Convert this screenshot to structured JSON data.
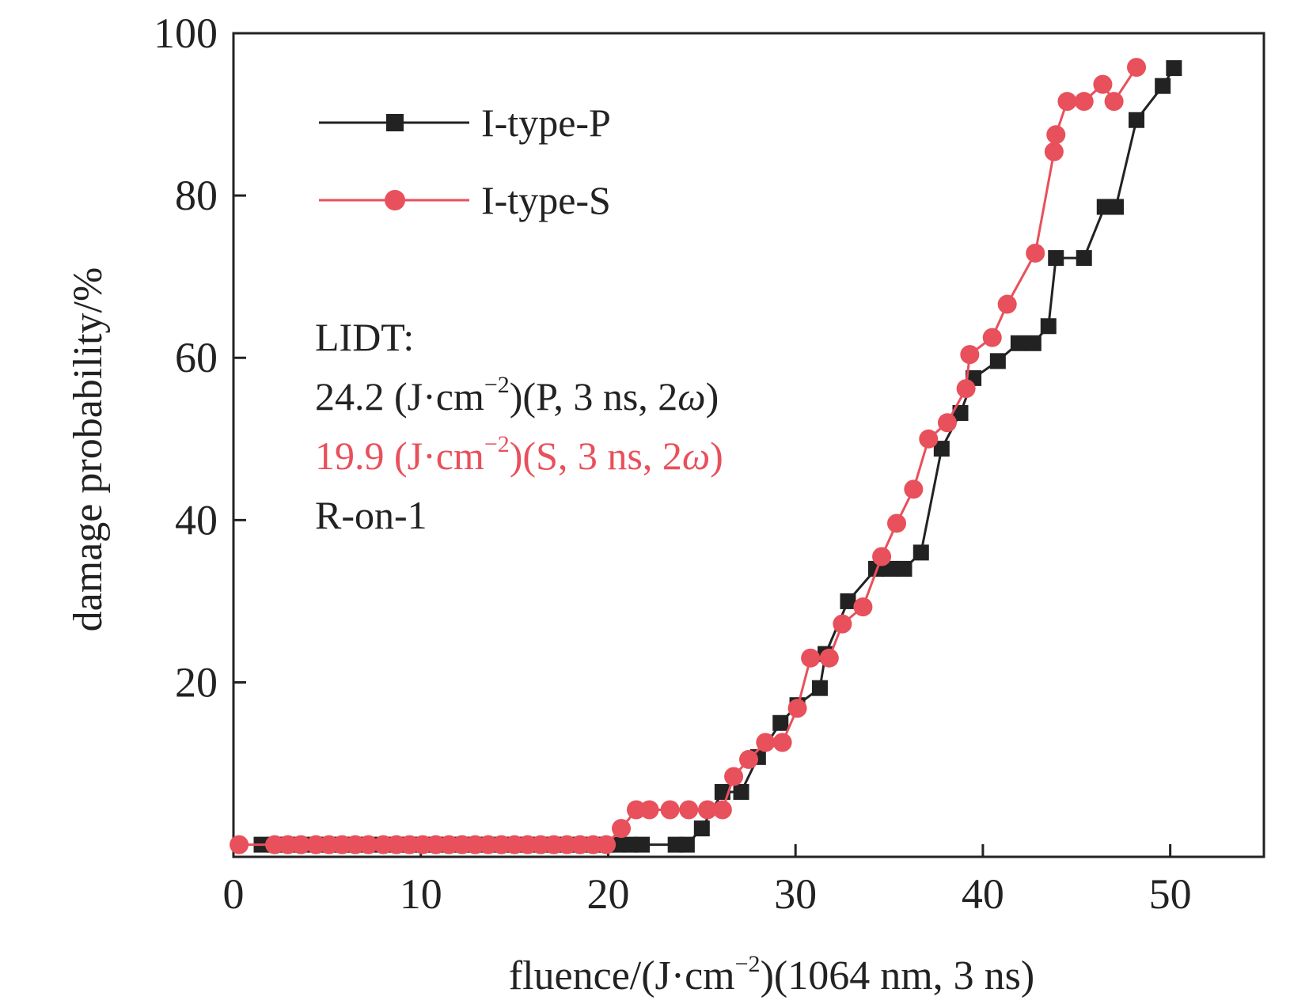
{
  "chart_data": {
    "type": "line",
    "xlabel": "fluence/(J·cm",
    "xlabel_sup": "−2",
    "xlabel_tail": ")(1064 nm, 3 ns)",
    "ylabel": "damage probability/%",
    "xlim": [
      0,
      55
    ],
    "ylim": [
      -1.5,
      100
    ],
    "x_ticks": [
      "0",
      "10",
      "20",
      "30",
      "40",
      "50"
    ],
    "x_tick_values": [
      0,
      10,
      20,
      30,
      40,
      50
    ],
    "y_ticks": [
      "20",
      "40",
      "60",
      "80",
      "100"
    ],
    "y_tick_values": [
      20,
      40,
      60,
      80,
      100
    ],
    "grid": false,
    "legend_position": "top-left",
    "series": [
      {
        "name": "I-type-P",
        "color": "#222222",
        "marker": "square",
        "x": [
          1.5,
          2.2,
          2.9,
          3.6,
          4.4,
          5.1,
          5.8,
          6.5,
          7.2,
          8.0,
          8.7,
          9.4,
          10.1,
          10.8,
          11.5,
          12.2,
          12.9,
          13.6,
          14.3,
          15.0,
          15.7,
          16.4,
          17.1,
          17.8,
          18.5,
          19.2,
          19.9,
          20.5,
          21.2,
          21.8,
          23.6,
          24.2,
          25.0,
          26.1,
          27.1,
          28.0,
          29.2,
          30.1,
          31.3,
          31.6,
          32.8,
          34.3,
          35.0,
          35.8,
          36.7,
          37.8,
          38.8,
          39.5,
          40.8,
          41.9,
          42.7,
          43.5,
          43.9,
          45.4,
          46.5,
          47.1,
          48.2,
          49.6,
          50.2
        ],
        "y": [
          0,
          0,
          0,
          0,
          0,
          0,
          0,
          0,
          0,
          0,
          0,
          0,
          0,
          0,
          0,
          0,
          0,
          0,
          0,
          0,
          0,
          0,
          0,
          0,
          0,
          0,
          0,
          0,
          0,
          0,
          0,
          0,
          2,
          6.5,
          6.5,
          10.8,
          15,
          17.2,
          19.3,
          23.5,
          30,
          34,
          34,
          34,
          36,
          48.8,
          53.2,
          57.5,
          59.6,
          61.8,
          61.8,
          63.9,
          72.3,
          72.3,
          78.6,
          78.6,
          89.3,
          93.5,
          95.7
        ]
      },
      {
        "name": "I-type-S",
        "color": "#e8505b",
        "marker": "circle",
        "x": [
          0.3,
          2.2,
          2.9,
          3.6,
          4.4,
          5.1,
          5.8,
          6.5,
          7.2,
          8.0,
          8.7,
          9.4,
          10.1,
          10.8,
          11.5,
          12.2,
          12.9,
          13.6,
          14.3,
          15.0,
          15.7,
          16.4,
          17.1,
          17.8,
          18.5,
          19.2,
          19.9,
          20.7,
          21.5,
          22.2,
          23.3,
          24.3,
          25.3,
          26.1,
          26.7,
          27.5,
          28.4,
          29.3,
          30.1,
          30.8,
          31.8,
          32.5,
          33.6,
          34.6,
          35.4,
          36.3,
          37.1,
          38.1,
          39.1,
          39.3,
          40.5,
          41.3,
          42.8,
          43.8,
          43.9,
          44.5,
          45.4,
          46.4,
          47.0,
          48.2
        ],
        "y": [
          0,
          0,
          0,
          0,
          0,
          0,
          0,
          0,
          0,
          0,
          0,
          0,
          0,
          0,
          0,
          0,
          0,
          0,
          0,
          0,
          0,
          0,
          0,
          0,
          0,
          0,
          0,
          2,
          4.3,
          4.3,
          4.3,
          4.3,
          4.3,
          4.3,
          8.4,
          10.5,
          12.6,
          12.6,
          16.8,
          23,
          23,
          27.2,
          29.3,
          35.5,
          39.6,
          43.8,
          50,
          52,
          56.2,
          60.4,
          62.5,
          66.6,
          72.9,
          85.4,
          87.5,
          91.6,
          91.6,
          93.7,
          91.6,
          95.8
        ]
      }
    ],
    "legend": [
      {
        "label": "I-type-P",
        "color": "#222222",
        "marker": "square"
      },
      {
        "label": "I-type-S",
        "color": "#e8505b",
        "marker": "circle"
      }
    ],
    "annotations": {
      "lidt_title": "LIDT:",
      "line_p_value": "24.2 (J·cm",
      "line_p_sup": "−2",
      "line_p_tail_a": ")(P, 3 ns, 2",
      "line_p_omega": "ω",
      "line_p_tail_b": ")",
      "line_s_value": "19.9 (J·cm",
      "line_s_sup": "−2",
      "line_s_tail_a": ")(S, 3 ns, 2",
      "line_s_omega": "ω",
      "line_s_tail_b": ")",
      "method": "R-on-1",
      "color_p": "#222222",
      "color_s": "#e8505b"
    }
  }
}
